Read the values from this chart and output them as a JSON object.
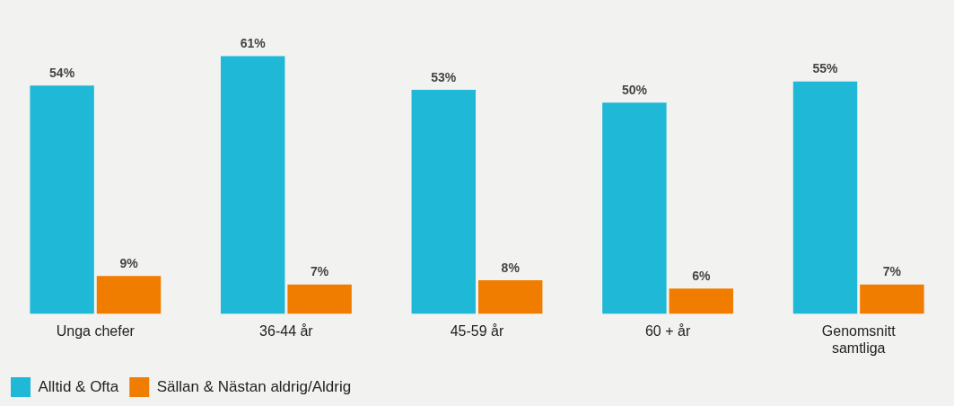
{
  "chart_data": {
    "type": "bar",
    "categories": [
      "Unga chefer",
      "36-44 år",
      "45-59 år",
      "60 + år",
      "Genomsnitt samtliga"
    ],
    "series": [
      {
        "name": "Alltid & Ofta",
        "color": "#1fb8d6",
        "values": [
          54,
          61,
          53,
          50,
          55
        ],
        "value_labels": [
          "54%",
          "61%",
          "53%",
          "50%",
          "55%"
        ]
      },
      {
        "name": "Sällan & Nästan aldrig/Aldrig",
        "color": "#f07c00",
        "values": [
          9,
          7,
          8,
          6,
          7
        ],
        "value_labels": [
          "9%",
          "7%",
          "8%",
          "6%",
          "7%"
        ]
      }
    ],
    "legend": "bottom left",
    "grid": false
  }
}
